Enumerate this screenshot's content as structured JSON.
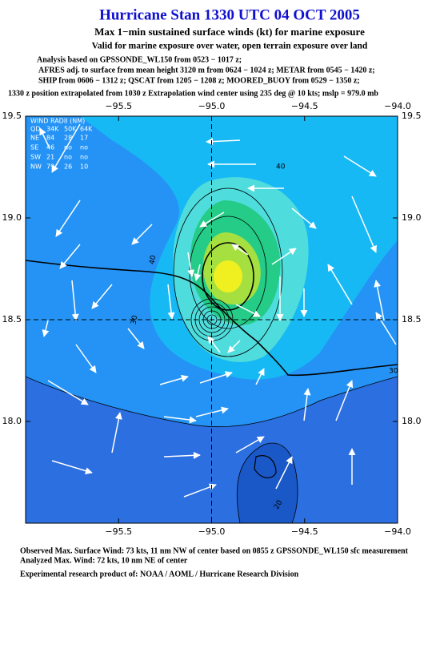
{
  "header": {
    "title": "Hurricane Stan 1330 UTC 04 OCT 2005",
    "subtitle": "Max 1−min sustained surface winds (kt) for marine exposure",
    "validity": "Valid for marine exposure over water, open terrain exposure over land",
    "analysis": [
      "Analysis based on  GPSSONDE_WL150 from 0523 − 1017 z;",
      "AFRES adj. to surface from mean height 3120 m from 0624 − 1024 z;  METAR from 0545 − 1420 z;",
      "SHIP from 0606 − 1312 z;  QSCAT from 1205 − 1208 z;  MOORED_BUOY from 0529 − 1350 z;"
    ],
    "position_note": "1330 z position extrapolated from 1030 z Extrapolation wind center using 235 deg @ 10 kts; mslp = 979.0 mb"
  },
  "map": {
    "xlim": [
      -96.0,
      -94.0
    ],
    "ylim": [
      17.5,
      19.5
    ],
    "xticks": [
      {
        "value": -95.5,
        "label": "−95.5"
      },
      {
        "value": -95.0,
        "label": "−95.0"
      },
      {
        "value": -94.5,
        "label": "−94.5"
      },
      {
        "value": -94.0,
        "label": "−94.0"
      }
    ],
    "yticks": [
      19.5,
      {
        "value": 19.0,
        "label": "19.0"
      },
      18.5,
      {
        "value": 18.0,
        "label": "18.0"
      }
    ],
    "wind_radii": {
      "title": "WIND RADII (NM)",
      "header": [
        "QD",
        "34K",
        "50K",
        "64K"
      ],
      "rows": [
        [
          "NE",
          84,
          28,
          17
        ],
        [
          "SE",
          46,
          "no",
          "no"
        ],
        [
          "SW",
          21,
          "no",
          "no"
        ],
        [
          "NW",
          79,
          26,
          10
        ]
      ]
    },
    "contour_labels": [
      "40",
      "40",
      "30",
      "30",
      "20"
    ]
  },
  "footer": {
    "observed": "Observed Max. Surface Wind: 73 kts, 11 nm NW of center based on 0855 z GPSSONDE_WL150 sfc measurement",
    "analyzed": "Analyzed Max. Wind: 72 kts, 10 nm NE of center",
    "credit": "Experimental research product of:  NOAA / AOML / Hurricane Research Division"
  }
}
